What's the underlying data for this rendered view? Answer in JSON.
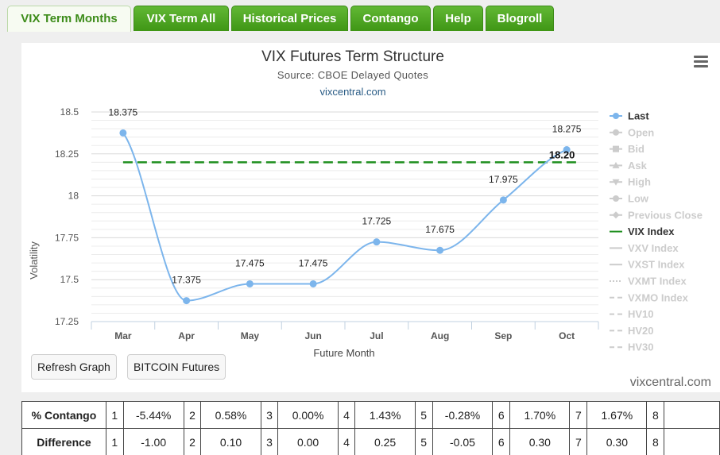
{
  "tabs": [
    {
      "label": "VIX Term Months",
      "active": true
    },
    {
      "label": "VIX Term All",
      "active": false
    },
    {
      "label": "Historical Prices",
      "active": false
    },
    {
      "label": "Contango",
      "active": false
    },
    {
      "label": "Help",
      "active": false
    },
    {
      "label": "Blogroll",
      "active": false
    }
  ],
  "chart": {
    "title": "VIX Futures Term Structure",
    "subtitle": "Source: CBOE Delayed Quotes",
    "link": "vixcentral.com",
    "credit": "vixcentral.com",
    "menu_icon": "hamburger-menu-icon"
  },
  "chart_data": {
    "type": "line",
    "title": "VIX Futures Term Structure",
    "subtitle": "Source: CBOE Delayed Quotes",
    "xlabel": "Future Month",
    "ylabel": "Volatility",
    "categories": [
      "Mar",
      "Apr",
      "May",
      "Jun",
      "Jul",
      "Aug",
      "Sep",
      "Oct"
    ],
    "series": [
      {
        "name": "Last",
        "values": [
          18.375,
          17.375,
          17.475,
          17.475,
          17.725,
          17.675,
          17.975,
          18.275
        ],
        "color": "#7cb5ec"
      },
      {
        "name": "VIX Index",
        "value": 18.2,
        "label": "18.20",
        "color": "#1f8f1f"
      }
    ],
    "data_labels": [
      "18.375",
      "17.375",
      "17.475",
      "17.475",
      "17.725",
      "17.675",
      "17.975",
      "18.275"
    ],
    "ylim": [
      17.25,
      18.5
    ],
    "yticks": [
      {
        "value": 18.5,
        "label": "18.5"
      },
      {
        "value": 18.25,
        "label": "18.25"
      },
      {
        "value": 18.0,
        "label": "18"
      },
      {
        "value": 17.75,
        "label": "17.75"
      },
      {
        "value": 17.5,
        "label": "17.5"
      },
      {
        "value": 17.25,
        "label": "17.25"
      }
    ],
    "grid": true,
    "legend_position": "right",
    "legend": [
      {
        "label": "Last",
        "active": true,
        "symbol": "line-circle",
        "color": "#7cb5ec"
      },
      {
        "label": "Open",
        "active": false,
        "symbol": "line-circle"
      },
      {
        "label": "Bid",
        "active": false,
        "symbol": "line-square"
      },
      {
        "label": "Ask",
        "active": false,
        "symbol": "line-triangle"
      },
      {
        "label": "High",
        "active": false,
        "symbol": "line-triangle-down"
      },
      {
        "label": "Low",
        "active": false,
        "symbol": "line-circle"
      },
      {
        "label": "Previous Close",
        "active": false,
        "symbol": "line-diamond"
      },
      {
        "label": "VIX Index",
        "active": true,
        "symbol": "line",
        "color": "#1f8f1f"
      },
      {
        "label": "VXV Index",
        "active": false,
        "symbol": "line"
      },
      {
        "label": "VXST Index",
        "active": false,
        "symbol": "line"
      },
      {
        "label": "VXMT Index",
        "active": false,
        "symbol": "dotted-line"
      },
      {
        "label": "VXMO Index",
        "active": false,
        "symbol": "dashed-line"
      },
      {
        "label": "HV10",
        "active": false,
        "symbol": "dashed-line"
      },
      {
        "label": "HV20",
        "active": false,
        "symbol": "dashed-line"
      },
      {
        "label": "HV30",
        "active": false,
        "symbol": "dashed-line"
      }
    ]
  },
  "buttons": {
    "refresh": "Refresh Graph",
    "bitcoin": "BITCOIN Futures"
  },
  "table": {
    "rows": [
      {
        "label": "% Contango",
        "cells": [
          {
            "idx": "1",
            "value": "-5.44%"
          },
          {
            "idx": "2",
            "value": "0.58%"
          },
          {
            "idx": "3",
            "value": "0.00%"
          },
          {
            "idx": "4",
            "value": "1.43%"
          },
          {
            "idx": "5",
            "value": "-0.28%"
          },
          {
            "idx": "6",
            "value": "1.70%"
          },
          {
            "idx": "7",
            "value": "1.67%"
          },
          {
            "idx": "8",
            "value": ""
          }
        ]
      },
      {
        "label": "Difference",
        "cells": [
          {
            "idx": "1",
            "value": "-1.00"
          },
          {
            "idx": "2",
            "value": "0.10"
          },
          {
            "idx": "3",
            "value": "0.00"
          },
          {
            "idx": "4",
            "value": "0.25"
          },
          {
            "idx": "5",
            "value": "-0.05"
          },
          {
            "idx": "6",
            "value": "0.30"
          },
          {
            "idx": "7",
            "value": "0.30"
          },
          {
            "idx": "8",
            "value": ""
          }
        ]
      }
    ]
  }
}
